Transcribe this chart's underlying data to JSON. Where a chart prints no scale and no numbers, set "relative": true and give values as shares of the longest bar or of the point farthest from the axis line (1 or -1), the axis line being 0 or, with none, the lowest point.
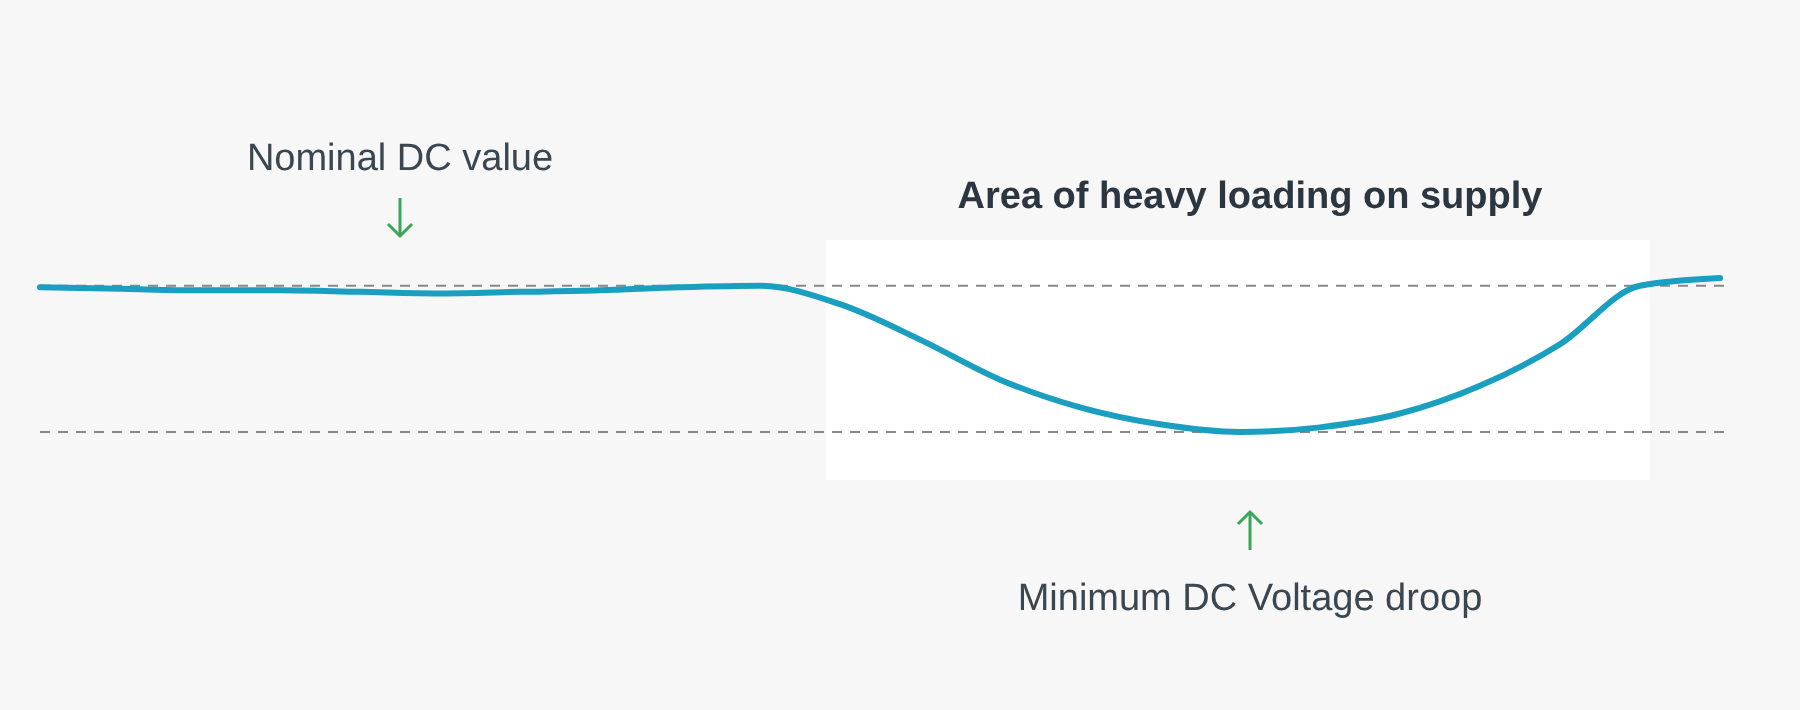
{
  "chart_data": {
    "type": "line",
    "relative": true,
    "categories": [
      null,
      null,
      null,
      null,
      null,
      null,
      null,
      null,
      null,
      null,
      null,
      null,
      null,
      null,
      null,
      null,
      null,
      null,
      null,
      null,
      null,
      null
    ],
    "series": [
      {
        "color": "#1a9fc0",
        "values": [
          0.94,
          0.93,
          0.92,
          0.92,
          0.91,
          0.9,
          0.91,
          0.92,
          0.94,
          0.95,
          0.83,
          0.6,
          0.34,
          0.16,
          0.05,
          0,
          0.03,
          0.12,
          0.3,
          0.57,
          0.95,
          1
        ]
      }
    ],
    "ref_lines": [
      {
        "axis": "y",
        "value": 0.95,
        "color": "#888888",
        "line_style": "dashed"
      },
      {
        "axis": "y",
        "value": 0,
        "color": "#888888",
        "line_style": "dashed"
      }
    ],
    "annotations": [
      "Nominal DC value",
      "Area of heavy loading on supply",
      "Minimum DC Voltage droop"
    ],
    "line_style": "solid"
  }
}
